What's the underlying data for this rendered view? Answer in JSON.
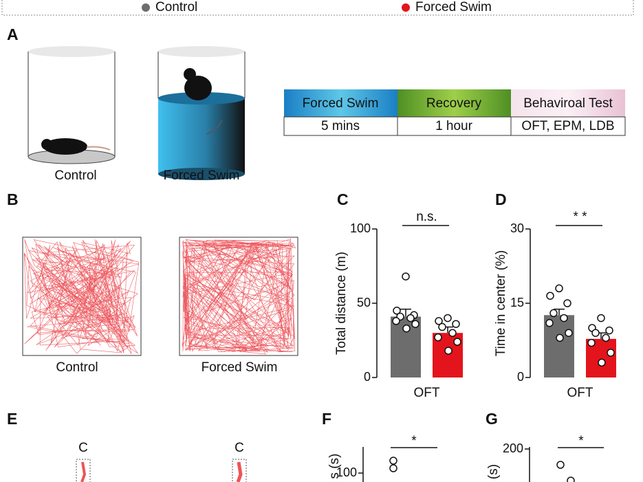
{
  "panel_a": {
    "label": "A",
    "captions": [
      "Control",
      "Forced Swim"
    ],
    "table": {
      "header": [
        "Forced Swim",
        "Recovery",
        "Behaviroal Test"
      ],
      "row": [
        "5 mins",
        "1 hour",
        "OFT, EPM, LDB"
      ]
    }
  },
  "panel_b": {
    "label": "B",
    "captions": [
      "Control",
      "Forced Swim"
    ]
  },
  "chart_data": [
    {
      "type": "bar",
      "label": "C",
      "ylabel": "Total distance (m)",
      "categories": [
        "OFT"
      ],
      "significance": "n.s.",
      "ylim": [
        0,
        100
      ],
      "yticks": [
        0,
        50,
        100
      ],
      "series": [
        {
          "name": "Control",
          "color": "#6d6d6d",
          "values": [
            41
          ],
          "errors": [
            5
          ],
          "points": [
            68,
            45,
            42,
            41,
            40,
            38,
            36,
            33
          ]
        },
        {
          "name": "Forced Swim",
          "color": "#e3141b",
          "values": [
            30
          ],
          "errors": [
            4
          ],
          "points": [
            40,
            38,
            36,
            34,
            30,
            27,
            24,
            18
          ]
        }
      ]
    },
    {
      "type": "bar",
      "label": "D",
      "ylabel": "Time in center (%)",
      "categories": [
        "OFT"
      ],
      "significance": "* *",
      "ylim": [
        0,
        30
      ],
      "yticks": [
        0,
        15,
        30
      ],
      "series": [
        {
          "name": "Control",
          "color": "#6d6d6d",
          "values": [
            12.6
          ],
          "errors": [
            1.2
          ],
          "points": [
            18,
            16.5,
            15,
            13,
            12,
            11,
            9,
            8
          ]
        },
        {
          "name": "Forced Swim",
          "color": "#e3141b",
          "values": [
            7.8
          ],
          "errors": [
            1.2
          ],
          "points": [
            12,
            10,
            9.5,
            9,
            8,
            7,
            5,
            3
          ]
        }
      ]
    }
  ],
  "panel_e": {
    "label": "E",
    "labels": [
      "C",
      "C"
    ]
  },
  "panel_f": {
    "label": "F",
    "ylabel": "s (s)",
    "tick": 100,
    "significance": "*"
  },
  "panel_g": {
    "label": "G",
    "ylabel": "(s)",
    "tick": 200,
    "significance": "*"
  }
}
